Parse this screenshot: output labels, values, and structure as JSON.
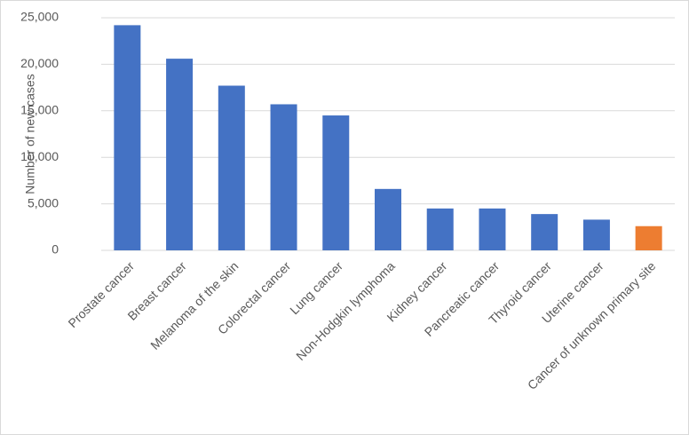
{
  "chart_data": {
    "type": "bar",
    "y_label": "Number of new cases",
    "categories": [
      "Prostate cancer",
      "Breast cancer",
      "Melanoma of the skin",
      "Colorectal cancer",
      "Lung cancer",
      "Non-Hodgkin lymphoma",
      "Kidney cancer",
      "Pancreatic cancer",
      "Thyroid cancer",
      "Uterine cancer",
      "Cancer of unknown primary site"
    ],
    "values": [
      24200,
      20600,
      17700,
      15700,
      14500,
      6600,
      4500,
      4500,
      3900,
      3300,
      2600
    ],
    "colors": [
      "#4472c4",
      "#4472c4",
      "#4472c4",
      "#4472c4",
      "#4472c4",
      "#4472c4",
      "#4472c4",
      "#4472c4",
      "#4472c4",
      "#4472c4",
      "#ed7d31"
    ],
    "ylim": [
      0,
      25000
    ],
    "yticks": [
      0,
      {
        "value": 5000,
        "label": "5,000"
      },
      {
        "value": 10000,
        "label": "10,000"
      },
      {
        "value": 15000,
        "label": "15,000"
      },
      {
        "value": 20000,
        "label": "20,000"
      },
      {
        "value": 25000,
        "label": "25,000"
      }
    ],
    "grid": true
  }
}
